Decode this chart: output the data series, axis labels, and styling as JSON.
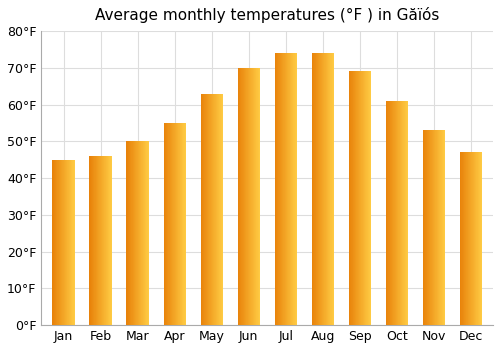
{
  "title": "Average monthly temperatures (°F ) in Găïós",
  "months": [
    "Jan",
    "Feb",
    "Mar",
    "Apr",
    "May",
    "Jun",
    "Jul",
    "Aug",
    "Sep",
    "Oct",
    "Nov",
    "Dec"
  ],
  "values": [
    45,
    46,
    50,
    55,
    63,
    70,
    74,
    74,
    69,
    61,
    53,
    47
  ],
  "ylim": [
    0,
    80
  ],
  "yticks": [
    0,
    10,
    20,
    30,
    40,
    50,
    60,
    70,
    80
  ],
  "ytick_labels": [
    "0°F",
    "10°F",
    "20°F",
    "30°F",
    "40°F",
    "50°F",
    "60°F",
    "70°F",
    "80°F"
  ],
  "bar_color_left": "#E8820A",
  "bar_color_right": "#FFCC44",
  "background_color": "#ffffff",
  "plot_background": "#ffffff",
  "title_fontsize": 11,
  "tick_fontsize": 9,
  "grid_color": "#dddddd",
  "bar_width": 0.6
}
